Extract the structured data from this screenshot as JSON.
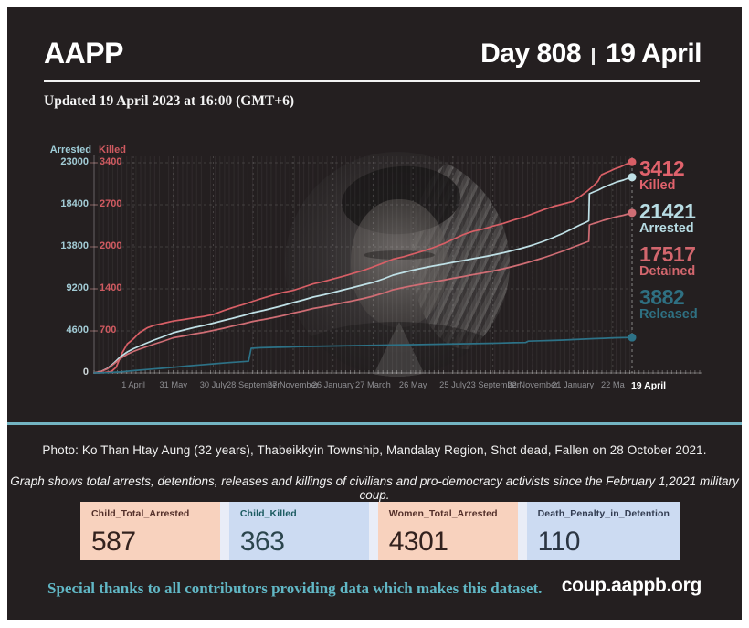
{
  "header": {
    "brand": "AAPP",
    "day": "Day 808",
    "date": "19 April",
    "updated": "Updated 19 April 2023 at 16:00 (GMT+6)"
  },
  "chart": {
    "arrested_axis_title": "Arrested",
    "killed_axis_title": "Killed",
    "arrested_ticks": [
      "23000",
      "18400",
      "13800",
      "9200",
      "4600"
    ],
    "killed_ticks": [
      "3400",
      "2700",
      "2000",
      "1400",
      "700"
    ],
    "zero_tick": "0",
    "x_labels": [
      {
        "label": "1 April",
        "day": 59
      },
      {
        "label": "31 May",
        "day": 119
      },
      {
        "label": "30 July",
        "day": 179
      },
      {
        "label": "28 September",
        "day": 239
      },
      {
        "label": "27 November",
        "day": 299
      },
      {
        "label": "26 January",
        "day": 359
      },
      {
        "label": "27 March",
        "day": 419
      },
      {
        "label": "26 May",
        "day": 479
      },
      {
        "label": "25 July",
        "day": 539
      },
      {
        "label": "23 September",
        "day": 599
      },
      {
        "label": "22 November",
        "day": 659
      },
      {
        "label": "21 January",
        "day": 719
      },
      {
        "label": "22 Ma",
        "day": 779
      },
      {
        "label": "19 April",
        "day": 808,
        "final": true
      }
    ],
    "end_labels": [
      {
        "value": "3412",
        "label": "Killed",
        "color": "#e0626c"
      },
      {
        "value": "21421",
        "label": "Arrested",
        "color": "#b7dce3"
      },
      {
        "value": "17517",
        "label": "Detained",
        "color": "#d2666d"
      },
      {
        "value": "3882",
        "label": "Released",
        "color": "#2f7082"
      }
    ]
  },
  "chart_data": {
    "type": "line",
    "title": "Total arrests, detentions, releases and killings since the February 1, 2021 military coup",
    "x_unit": "days since 1 February 2021",
    "x_range": [
      0,
      808
    ],
    "grid": true,
    "axes": {
      "arrested": {
        "side": "left-outer",
        "max": 23000,
        "ticks": [
          23000,
          18400,
          13800,
          9200,
          4600,
          0
        ]
      },
      "killed": {
        "side": "left-inner",
        "max": 3400,
        "ticks": [
          3400,
          2700,
          2000,
          1400,
          700,
          0
        ]
      }
    },
    "series": [
      {
        "name": "Killed",
        "axis": "killed",
        "color": "#d85f66",
        "final_value": 3412,
        "points": [
          [
            0,
            0
          ],
          [
            15,
            5
          ],
          [
            26,
            25
          ],
          [
            33,
            90
          ],
          [
            42,
            320
          ],
          [
            50,
            470
          ],
          [
            59,
            550
          ],
          [
            68,
            650
          ],
          [
            80,
            730
          ],
          [
            90,
            770
          ],
          [
            105,
            805
          ],
          [
            119,
            840
          ],
          [
            135,
            865
          ],
          [
            149,
            890
          ],
          [
            165,
            915
          ],
          [
            179,
            945
          ],
          [
            195,
            1010
          ],
          [
            209,
            1060
          ],
          [
            225,
            1110
          ],
          [
            239,
            1160
          ],
          [
            255,
            1215
          ],
          [
            269,
            1260
          ],
          [
            285,
            1305
          ],
          [
            299,
            1335
          ],
          [
            315,
            1390
          ],
          [
            329,
            1440
          ],
          [
            345,
            1480
          ],
          [
            359,
            1520
          ],
          [
            375,
            1565
          ],
          [
            389,
            1610
          ],
          [
            405,
            1660
          ],
          [
            419,
            1715
          ],
          [
            435,
            1780
          ],
          [
            449,
            1840
          ],
          [
            465,
            1880
          ],
          [
            479,
            1925
          ],
          [
            495,
            1975
          ],
          [
            509,
            2025
          ],
          [
            525,
            2090
          ],
          [
            539,
            2160
          ],
          [
            555,
            2240
          ],
          [
            569,
            2290
          ],
          [
            585,
            2330
          ],
          [
            599,
            2375
          ],
          [
            615,
            2420
          ],
          [
            629,
            2470
          ],
          [
            645,
            2520
          ],
          [
            659,
            2575
          ],
          [
            675,
            2640
          ],
          [
            689,
            2690
          ],
          [
            705,
            2735
          ],
          [
            719,
            2775
          ],
          [
            730,
            2855
          ],
          [
            740,
            2935
          ],
          [
            750,
            3025
          ],
          [
            757,
            3105
          ],
          [
            762,
            3205
          ],
          [
            768,
            3235
          ],
          [
            775,
            3265
          ],
          [
            783,
            3305
          ],
          [
            791,
            3335
          ],
          [
            799,
            3375
          ],
          [
            808,
            3412
          ]
        ]
      },
      {
        "name": "Arrested",
        "axis": "arrested",
        "color": "#bfe0e6",
        "final_value": 21421,
        "points": [
          [
            0,
            0
          ],
          [
            10,
            150
          ],
          [
            20,
            500
          ],
          [
            30,
            1100
          ],
          [
            40,
            1800
          ],
          [
            50,
            2300
          ],
          [
            59,
            2650
          ],
          [
            70,
            3000
          ],
          [
            80,
            3300
          ],
          [
            90,
            3600
          ],
          [
            105,
            4000
          ],
          [
            119,
            4400
          ],
          [
            135,
            4700
          ],
          [
            149,
            4950
          ],
          [
            165,
            5200
          ],
          [
            179,
            5450
          ],
          [
            195,
            5750
          ],
          [
            209,
            6000
          ],
          [
            225,
            6300
          ],
          [
            239,
            6600
          ],
          [
            255,
            6850
          ],
          [
            269,
            7100
          ],
          [
            285,
            7400
          ],
          [
            299,
            7700
          ],
          [
            315,
            8000
          ],
          [
            329,
            8300
          ],
          [
            345,
            8550
          ],
          [
            359,
            8800
          ],
          [
            375,
            9100
          ],
          [
            389,
            9350
          ],
          [
            405,
            9650
          ],
          [
            419,
            9900
          ],
          [
            435,
            10300
          ],
          [
            449,
            10700
          ],
          [
            465,
            11000
          ],
          [
            479,
            11250
          ],
          [
            495,
            11500
          ],
          [
            509,
            11700
          ],
          [
            525,
            11900
          ],
          [
            539,
            12100
          ],
          [
            555,
            12300
          ],
          [
            569,
            12500
          ],
          [
            585,
            12700
          ],
          [
            599,
            12900
          ],
          [
            615,
            13150
          ],
          [
            629,
            13400
          ],
          [
            645,
            13700
          ],
          [
            659,
            14000
          ],
          [
            675,
            14400
          ],
          [
            689,
            14800
          ],
          [
            705,
            15300
          ],
          [
            719,
            15800
          ],
          [
            730,
            16200
          ],
          [
            739,
            16500
          ],
          [
            743,
            16650
          ],
          [
            744,
            19600
          ],
          [
            750,
            19800
          ],
          [
            757,
            20000
          ],
          [
            765,
            20300
          ],
          [
            775,
            20600
          ],
          [
            785,
            20900
          ],
          [
            795,
            21100
          ],
          [
            802,
            21300
          ],
          [
            808,
            21421
          ]
        ]
      },
      {
        "name": "Detained",
        "axis": "arrested",
        "color": "#cf6d74",
        "final_value": 17517,
        "points": [
          [
            0,
            0
          ],
          [
            10,
            140
          ],
          [
            20,
            450
          ],
          [
            30,
            1000
          ],
          [
            40,
            1600
          ],
          [
            50,
            2050
          ],
          [
            59,
            2350
          ],
          [
            70,
            2650
          ],
          [
            80,
            2900
          ],
          [
            90,
            3150
          ],
          [
            105,
            3500
          ],
          [
            119,
            3850
          ],
          [
            135,
            4050
          ],
          [
            149,
            4250
          ],
          [
            165,
            4450
          ],
          [
            179,
            4650
          ],
          [
            195,
            4900
          ],
          [
            209,
            5150
          ],
          [
            225,
            5400
          ],
          [
            239,
            5650
          ],
          [
            255,
            5850
          ],
          [
            269,
            6050
          ],
          [
            285,
            6300
          ],
          [
            299,
            6550
          ],
          [
            315,
            6800
          ],
          [
            329,
            7050
          ],
          [
            345,
            7250
          ],
          [
            359,
            7450
          ],
          [
            375,
            7700
          ],
          [
            389,
            7900
          ],
          [
            405,
            8150
          ],
          [
            419,
            8400
          ],
          [
            435,
            8750
          ],
          [
            449,
            9100
          ],
          [
            465,
            9350
          ],
          [
            479,
            9550
          ],
          [
            495,
            9750
          ],
          [
            509,
            9950
          ],
          [
            525,
            10150
          ],
          [
            539,
            10350
          ],
          [
            555,
            10550
          ],
          [
            569,
            10750
          ],
          [
            585,
            10950
          ],
          [
            599,
            11150
          ],
          [
            615,
            11400
          ],
          [
            629,
            11650
          ],
          [
            645,
            11950
          ],
          [
            659,
            12250
          ],
          [
            675,
            12600
          ],
          [
            689,
            12950
          ],
          [
            705,
            13350
          ],
          [
            719,
            13750
          ],
          [
            730,
            14050
          ],
          [
            739,
            14300
          ],
          [
            743,
            14400
          ],
          [
            744,
            16200
          ],
          [
            750,
            16350
          ],
          [
            757,
            16500
          ],
          [
            765,
            16700
          ],
          [
            775,
            16900
          ],
          [
            785,
            17100
          ],
          [
            795,
            17250
          ],
          [
            802,
            17400
          ],
          [
            808,
            17517
          ]
        ]
      },
      {
        "name": "Released",
        "axis": "arrested",
        "color": "#2d7287",
        "final_value": 3882,
        "points": [
          [
            0,
            0
          ],
          [
            20,
            30
          ],
          [
            40,
            120
          ],
          [
            59,
            250
          ],
          [
            80,
            380
          ],
          [
            100,
            500
          ],
          [
            119,
            620
          ],
          [
            140,
            760
          ],
          [
            160,
            880
          ],
          [
            180,
            1000
          ],
          [
            200,
            1120
          ],
          [
            220,
            1220
          ],
          [
            232,
            1280
          ],
          [
            236,
            2700
          ],
          [
            250,
            2760
          ],
          [
            269,
            2800
          ],
          [
            290,
            2840
          ],
          [
            310,
            2880
          ],
          [
            329,
            2910
          ],
          [
            350,
            2940
          ],
          [
            370,
            2965
          ],
          [
            390,
            2990
          ],
          [
            410,
            3015
          ],
          [
            430,
            3040
          ],
          [
            450,
            3065
          ],
          [
            470,
            3090
          ],
          [
            490,
            3115
          ],
          [
            510,
            3140
          ],
          [
            530,
            3165
          ],
          [
            550,
            3190
          ],
          [
            570,
            3215
          ],
          [
            590,
            3245
          ],
          [
            610,
            3275
          ],
          [
            630,
            3305
          ],
          [
            648,
            3330
          ],
          [
            652,
            3480
          ],
          [
            670,
            3520
          ],
          [
            690,
            3560
          ],
          [
            705,
            3600
          ],
          [
            719,
            3650
          ],
          [
            735,
            3700
          ],
          [
            750,
            3750
          ],
          [
            765,
            3795
          ],
          [
            780,
            3835
          ],
          [
            795,
            3865
          ],
          [
            808,
            3882
          ]
        ]
      }
    ]
  },
  "photo_caption": "Photo: Ko Than Htay Aung (32 years), Thabeikkyin Township, Mandalay Region, Shot dead, Fallen on 28 October 2021.",
  "graph_note": "Graph shows total arrests, detentions, releases and killings of civilians and pro-democracy activists since the February 1,2021 military coup.",
  "stats": [
    {
      "label": "Child_Total_Arrested",
      "value": "587",
      "bg": "#f8d2be",
      "label_color": "#54302a",
      "value_color": "#33221e"
    },
    {
      "label": "Child_Killed",
      "value": "363",
      "bg": "#ccdbf2",
      "label_color": "#1d5c62",
      "value_color": "#2b454d"
    },
    {
      "label": "Women_Total_Arrested",
      "value": "4301",
      "bg": "#f8d2be",
      "label_color": "#54302a",
      "value_color": "#33221e"
    },
    {
      "label": "Death_Penalty_in_Detention",
      "value": "110",
      "bg": "#ccdbf2",
      "label_color": "#333d52",
      "value_color": "#2b3542"
    }
  ],
  "footer": {
    "thanks": "Special thanks to all contributors providing data which makes this dataset.",
    "site": "coup.aappb.org"
  },
  "colors": {
    "panel": "#241f20",
    "divider": "#73b4c2",
    "page": "#ffffff"
  }
}
